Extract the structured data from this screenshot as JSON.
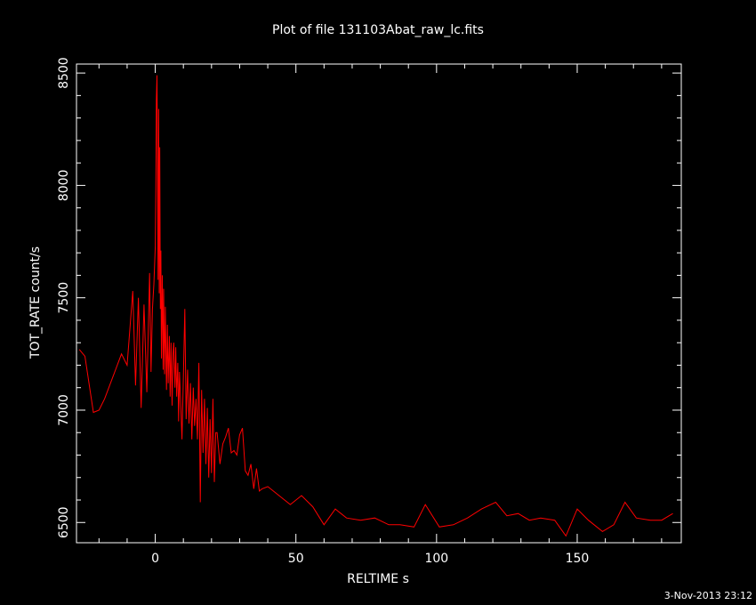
{
  "chart_data": {
    "type": "line",
    "title": "Plot of file 131103Abat_raw_lc.fits",
    "xlabel": "RELTIME  s",
    "ylabel": "TOT_RATE  count/s",
    "xlim": [
      -28,
      187
    ],
    "ylim": [
      6410,
      8540
    ],
    "grid": false,
    "legend": "none",
    "line_color": "#ff0000",
    "background": "#000000",
    "foreground": "#ffffff",
    "x_ticks": [
      0,
      50,
      100,
      150
    ],
    "y_ticks": [
      6500,
      7000,
      7500,
      8000,
      8500
    ],
    "x": [
      -27,
      -25,
      -22,
      -20,
      -18,
      -15,
      -12,
      -10,
      -8,
      -7,
      -6,
      -5,
      -4,
      -3,
      -2,
      -1.5,
      -1,
      -0.5,
      0,
      0.2,
      0.4,
      0.6,
      0.8,
      1.0,
      1.2,
      1.4,
      1.6,
      1.8,
      2.0,
      2.2,
      2.5,
      2.8,
      3.0,
      3.3,
      3.6,
      4.0,
      4.3,
      4.6,
      5.0,
      5.3,
      5.6,
      6.0,
      6.3,
      6.6,
      7.0,
      7.3,
      7.6,
      8.0,
      8.3,
      8.6,
      9.0,
      9.5,
      10.0,
      10.5,
      11.0,
      11.5,
      12.0,
      12.5,
      13.0,
      13.5,
      14.0,
      14.5,
      15.0,
      15.5,
      16.0,
      16.5,
      17.0,
      17.5,
      18.0,
      18.5,
      19.0,
      19.5,
      20.0,
      20.5,
      21.0,
      21.5,
      22.0,
      23.0,
      24.0,
      25.0,
      26.0,
      27.0,
      28.0,
      29.0,
      30.0,
      31.0,
      32.0,
      33.0,
      34.0,
      35.0,
      36.0,
      37.0,
      38.0,
      40.0,
      44.0,
      48.0,
      52.0,
      56.0,
      60.0,
      64.0,
      68.0,
      73.0,
      78.0,
      83.0,
      87.0,
      92.0,
      96.0,
      101.0,
      106.0,
      111.0,
      116.0,
      121.0,
      125.0,
      129.0,
      133.0,
      137.0,
      142.0,
      146.0,
      150.0,
      154.0,
      159.0,
      163.0,
      167.0,
      171.0,
      176.0,
      180.0,
      184.0
    ],
    "y": [
      7270,
      7240,
      6990,
      7000,
      7050,
      7150,
      7250,
      7200,
      7530,
      7110,
      7500,
      7010,
      7470,
      7080,
      7610,
      7170,
      7450,
      7560,
      7730,
      7990,
      8380,
      8490,
      8100,
      7580,
      8340,
      7520,
      8170,
      7450,
      7710,
      7230,
      7600,
      7180,
      7540,
      7160,
      7460,
      7090,
      7380,
      7120,
      7330,
      7060,
      7300,
      7020,
      7250,
      7300,
      7100,
      7280,
      7060,
      7210,
      6950,
      7170,
      7050,
      6870,
      7150,
      7450,
      6960,
      7180,
      6940,
      7120,
      6870,
      7100,
      6930,
      7050,
      6870,
      7210,
      6590,
      7090,
      6810,
      7050,
      6760,
      7010,
      6700,
      6960,
      6720,
      7050,
      6680,
      6900,
      6900,
      6760,
      6850,
      6880,
      6920,
      6810,
      6820,
      6800,
      6890,
      6920,
      6730,
      6710,
      6760,
      6650,
      6740,
      6640,
      6650,
      6660,
      6620,
      6580,
      6620,
      6570,
      6490,
      6560,
      6520,
      6510,
      6520,
      6490,
      6490,
      6480,
      6580,
      6480,
      6490,
      6520,
      6560,
      6590,
      6530,
      6540,
      6510,
      6520,
      6510,
      6440,
      6560,
      6510,
      6460,
      6490,
      6590,
      6520,
      6510,
      6510,
      6540
    ]
  },
  "footer": {
    "timestamp": "3-Nov-2013 23:12"
  }
}
